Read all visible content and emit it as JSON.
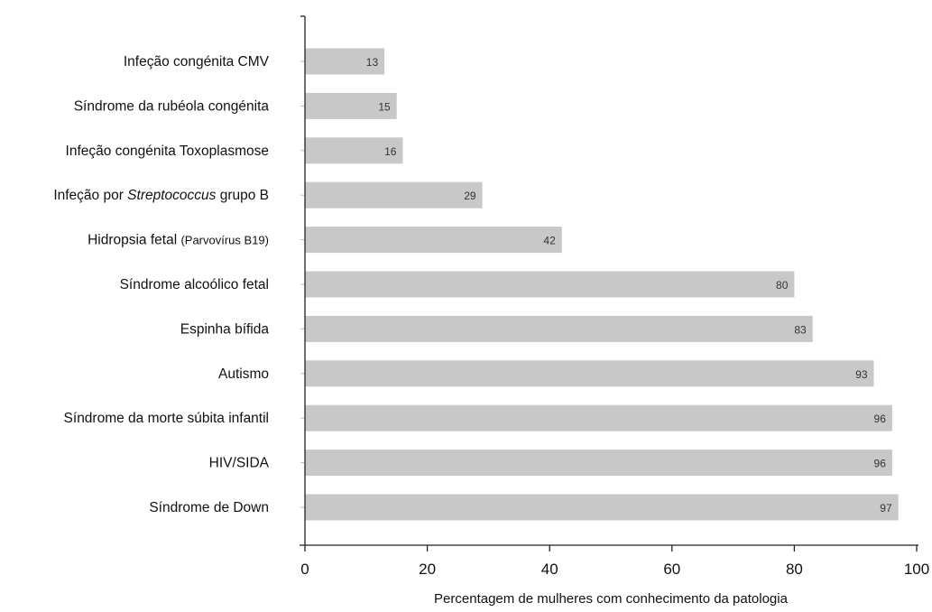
{
  "chart_data": {
    "type": "bar",
    "orientation": "horizontal",
    "categories": [
      {
        "parts": [
          {
            "text": "Infeção congénita CMV",
            "style": "normal"
          }
        ]
      },
      {
        "parts": [
          {
            "text": "Síndrome da rubéola congénita",
            "style": "normal"
          }
        ]
      },
      {
        "parts": [
          {
            "text": "Infeção congénita Toxoplasmose",
            "style": "normal"
          }
        ]
      },
      {
        "parts": [
          {
            "text": "Infeção por ",
            "style": "normal"
          },
          {
            "text": "Streptococcus",
            "style": "italic"
          },
          {
            "text": " grupo B",
            "style": "normal"
          }
        ]
      },
      {
        "parts": [
          {
            "text": "Hidropsia fetal ",
            "style": "normal"
          },
          {
            "text": "(Parvovírus B19)",
            "style": "small"
          }
        ]
      },
      {
        "parts": [
          {
            "text": "Síndrome alcoólico fetal",
            "style": "normal"
          }
        ]
      },
      {
        "parts": [
          {
            "text": "Espinha bífida",
            "style": "normal"
          }
        ]
      },
      {
        "parts": [
          {
            "text": "Autismo",
            "style": "normal"
          }
        ]
      },
      {
        "parts": [
          {
            "text": "Síndrome da morte súbita infantil",
            "style": "normal"
          }
        ]
      },
      {
        "parts": [
          {
            "text": "HIV/SIDA",
            "style": "normal"
          }
        ]
      },
      {
        "parts": [
          {
            "text": "Síndrome de Down",
            "style": "normal"
          }
        ]
      }
    ],
    "values": [
      13,
      15,
      16,
      29,
      42,
      80,
      83,
      93,
      96,
      96,
      97
    ],
    "xlabel": "Percentagem de mulheres com conhecimento da patologia",
    "ylabel": "",
    "title": "",
    "xlim": [
      0,
      100
    ],
    "xticks": [
      0,
      20,
      40,
      60,
      80,
      100
    ],
    "bar_color": "#c8c8c8",
    "axis_color": "#222222",
    "grid": false,
    "legend": "none",
    "data_labels": "inside-end"
  }
}
